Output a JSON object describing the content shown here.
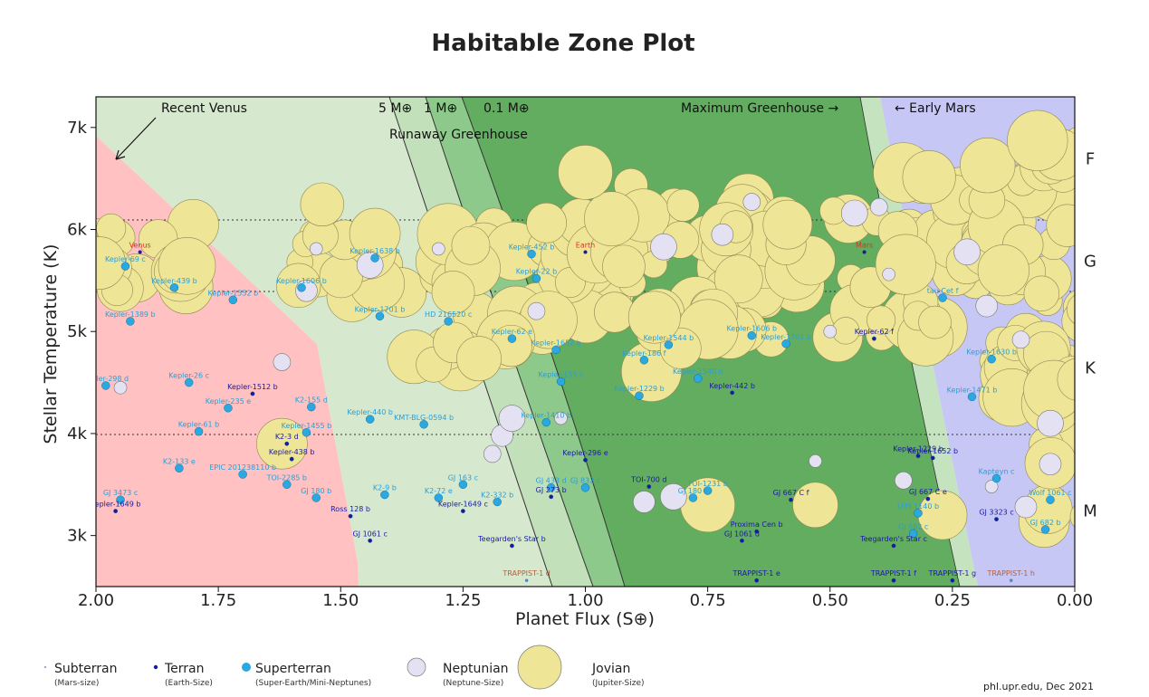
{
  "chart_data": {
    "type": "scatter",
    "title": "Habitable Zone Plot",
    "xlabel": "Planet Flux (S⊕)",
    "ylabel": "Stellar Temperature (K)",
    "xlim": [
      2.0,
      0.0
    ],
    "ylim": [
      2500,
      7300
    ],
    "xticks": [
      "2.00",
      "1.75",
      "1.50",
      "1.25",
      "1.00",
      "0.75",
      "0.50",
      "0.25",
      "0.00"
    ],
    "yticks": [
      "3k",
      "4k",
      "5k",
      "6k",
      "7k"
    ],
    "spectral_types": [
      {
        "label": "F",
        "temp": 6700
      },
      {
        "label": "G",
        "temp": 5700
      },
      {
        "label": "K",
        "temp": 4650
      },
      {
        "label": "M",
        "temp": 3250
      }
    ],
    "zone_annotations": {
      "recent_venus": "Recent Venus",
      "runaway": "Runaway Greenhouse",
      "mass_5": "5 M⊕",
      "mass_1": "1 M⊕",
      "mass_01": "0.1 M⊕",
      "max_greenhouse": "Maximum Greenhouse →",
      "early_mars": "← Early Mars"
    },
    "planet_types": [
      {
        "name": "Subterran",
        "desc": "(Mars-size)",
        "color": "#6a8fbf"
      },
      {
        "name": "Terran",
        "desc": "(Earth-Size)",
        "color": "#1a1aa0"
      },
      {
        "name": "Superterran",
        "desc": "(Super-Earth/Mini-Neptunes)",
        "color": "#29a9e0"
      },
      {
        "name": "Neptunian",
        "desc": "(Neptune-Size)",
        "color": "#e4e2f2"
      },
      {
        "name": "Jovian",
        "desc": "(Jupiter-Size)",
        "color": "#efe596"
      }
    ],
    "solar_system": [
      {
        "name": "Venus",
        "flux": 1.91,
        "temp": 5778
      },
      {
        "name": "Earth",
        "flux": 1.0,
        "temp": 5778
      },
      {
        "name": "Mars",
        "flux": 0.43,
        "temp": 5778
      }
    ],
    "labeled_planets": [
      {
        "name": "Kepler-69 c",
        "flux": 1.94,
        "temp": 5640,
        "type": "Superterran"
      },
      {
        "name": "Kepler-439 b",
        "flux": 1.84,
        "temp": 5430,
        "type": "Superterran"
      },
      {
        "name": "Kepler-1389 b",
        "flux": 1.93,
        "temp": 5100,
        "type": "Superterran"
      },
      {
        "name": "Kepler-298 d",
        "flux": 1.98,
        "temp": 4470,
        "type": "Superterran"
      },
      {
        "name": "Kepler-26 c",
        "flux": 1.81,
        "temp": 4500,
        "type": "Superterran"
      },
      {
        "name": "Kepler-235 e",
        "flux": 1.73,
        "temp": 4250,
        "type": "Superterran"
      },
      {
        "name": "Kepler-61 b",
        "flux": 1.79,
        "temp": 4020,
        "type": "Superterran"
      },
      {
        "name": "Kepler-1512 b",
        "flux": 1.68,
        "temp": 4390,
        "type": "Terran"
      },
      {
        "name": "Kepler-1552 b",
        "flux": 1.72,
        "temp": 5310,
        "type": "Superterran"
      },
      {
        "name": "Kepler-1606 b",
        "flux": 1.58,
        "temp": 5430,
        "type": "Superterran"
      },
      {
        "name": "Kepler-1638 b",
        "flux": 1.43,
        "temp": 5720,
        "type": "Superterran"
      },
      {
        "name": "Kepler-1701 b",
        "flux": 1.42,
        "temp": 5150,
        "type": "Superterran"
      },
      {
        "name": "HD 216520 c",
        "flux": 1.28,
        "temp": 5100,
        "type": "Superterran"
      },
      {
        "name": "Kepler-452 b",
        "flux": 1.11,
        "temp": 5760,
        "type": "Superterran"
      },
      {
        "name": "Kepler-22 b",
        "flux": 1.1,
        "temp": 5520,
        "type": "Superterran"
      },
      {
        "name": "Kepler-62 e",
        "flux": 1.15,
        "temp": 4930,
        "type": "Superterran"
      },
      {
        "name": "Kepler-1652 b",
        "flux": 1.06,
        "temp": 4820,
        "type": "Superterran"
      },
      {
        "name": "Kepler-155 c",
        "flux": 1.05,
        "temp": 4510,
        "type": "Superterran"
      },
      {
        "name": "Kepler-1410 b",
        "flux": 1.08,
        "temp": 4110,
        "type": "Superterran"
      },
      {
        "name": "K2-155 d",
        "flux": 1.56,
        "temp": 4260,
        "type": "Superterran"
      },
      {
        "name": "Kepler-1455 b",
        "flux": 1.57,
        "temp": 4010,
        "type": "Superterran"
      },
      {
        "name": "Kepler-440 b",
        "flux": 1.44,
        "temp": 4140,
        "type": "Superterran"
      },
      {
        "name": "KMT-BLG-0594 b",
        "flux": 1.33,
        "temp": 4090,
        "type": "Superterran"
      },
      {
        "name": "K2-3 d",
        "flux": 1.61,
        "temp": 3900,
        "type": "Terran"
      },
      {
        "name": "Kepler-438 b",
        "flux": 1.6,
        "temp": 3750,
        "type": "Terran"
      },
      {
        "name": "K2-133 e",
        "flux": 1.83,
        "temp": 3660,
        "type": "Superterran"
      },
      {
        "name": "EPIC 201238110 b",
        "flux": 1.7,
        "temp": 3600,
        "type": "Superterran"
      },
      {
        "name": "TOI-2285 b",
        "flux": 1.61,
        "temp": 3500,
        "type": "Superterran"
      },
      {
        "name": "GJ 180 b",
        "flux": 1.55,
        "temp": 3370,
        "type": "Superterran"
      },
      {
        "name": "K2-9 b",
        "flux": 1.41,
        "temp": 3400,
        "type": "Superterran"
      },
      {
        "name": "Ross 128 b",
        "flux": 1.48,
        "temp": 3190,
        "type": "Terran"
      },
      {
        "name": "GJ 1061 c",
        "flux": 1.44,
        "temp": 2950,
        "type": "Terran"
      },
      {
        "name": "Kepler-1649 b",
        "flux": 1.96,
        "temp": 3240,
        "type": "Terran"
      },
      {
        "name": "GJ 3473 c",
        "flux": 1.95,
        "temp": 3350,
        "type": "Superterran"
      },
      {
        "name": "K2-72 e",
        "flux": 1.3,
        "temp": 3370,
        "type": "Superterran"
      },
      {
        "name": "K2-332 b",
        "flux": 1.18,
        "temp": 3330,
        "type": "Superterran"
      },
      {
        "name": "Kepler-1649 c",
        "flux": 1.25,
        "temp": 3240,
        "type": "Terran"
      },
      {
        "name": "GJ 163 c",
        "flux": 1.25,
        "temp": 3500,
        "type": "Superterran"
      },
      {
        "name": "GJ 433 d",
        "flux": 1.07,
        "temp": 3470,
        "type": "Superterran"
      },
      {
        "name": "GJ 832 c",
        "flux": 1.0,
        "temp": 3470,
        "type": "Superterran"
      },
      {
        "name": "GJ 273 b",
        "flux": 1.07,
        "temp": 3380,
        "type": "Terran"
      },
      {
        "name": "Kepler-296 e",
        "flux": 1.0,
        "temp": 3740,
        "type": "Terran"
      },
      {
        "name": "Teegarden's Star b",
        "flux": 1.15,
        "temp": 2900,
        "type": "Terran"
      },
      {
        "name": "TRAPPIST-1 d",
        "flux": 1.12,
        "temp": 2560,
        "type": "Subterran"
      },
      {
        "name": "Kepler-1544 b",
        "flux": 0.83,
        "temp": 4870,
        "type": "Superterran"
      },
      {
        "name": "Kepler-186 f",
        "flux": 0.88,
        "temp": 4720,
        "type": "Superterran"
      },
      {
        "name": "Kepler-1540 b",
        "flux": 0.77,
        "temp": 4540,
        "type": "Superterran"
      },
      {
        "name": "Kepler-442 b",
        "flux": 0.7,
        "temp": 4400,
        "type": "Terran"
      },
      {
        "name": "Kepler-1229 b",
        "flux": 0.89,
        "temp": 4370,
        "type": "Superterran"
      },
      {
        "name": "TOI-700 d",
        "flux": 0.87,
        "temp": 3480,
        "type": "Terran"
      },
      {
        "name": "GJ 180 c",
        "flux": 0.78,
        "temp": 3370,
        "type": "Superterran"
      },
      {
        "name": "TOI-1231 b",
        "flux": 0.75,
        "temp": 3440,
        "type": "Superterran"
      },
      {
        "name": "Proxima Cen b",
        "flux": 0.65,
        "temp": 3040,
        "type": "Terran"
      },
      {
        "name": "GJ 1061 d",
        "flux": 0.68,
        "temp": 2950,
        "type": "Terran"
      },
      {
        "name": "TRAPPIST-1 e",
        "flux": 0.65,
        "temp": 2560,
        "type": "Terran"
      },
      {
        "name": "GJ 667 C f",
        "flux": 0.58,
        "temp": 3350,
        "type": "Terran"
      },
      {
        "name": "Kepler-62 f",
        "flux": 0.41,
        "temp": 4930,
        "type": "Terran"
      },
      {
        "name": "Kepler-1229 b",
        "flux": 0.32,
        "temp": 3780,
        "type": "Terran"
      },
      {
        "name": "Kepler-1652 b",
        "flux": 0.29,
        "temp": 3760,
        "type": "Terran"
      },
      {
        "name": "GJ 667 C e",
        "flux": 0.3,
        "temp": 3360,
        "type": "Terran"
      },
      {
        "name": "GJ 3323 c",
        "flux": 0.16,
        "temp": 3160,
        "type": "Terran"
      },
      {
        "name": "Teegarden's Star c",
        "flux": 0.37,
        "temp": 2900,
        "type": "Terran"
      },
      {
        "name": "TRAPPIST-1 f",
        "flux": 0.37,
        "temp": 2560,
        "type": "Terran"
      },
      {
        "name": "TRAPPIST-1 g",
        "flux": 0.25,
        "temp": 2560,
        "type": "Terran"
      },
      {
        "name": "TRAPPIST-1 h",
        "flux": 0.13,
        "temp": 2560,
        "type": "Subterran"
      },
      {
        "name": "Kepler-1630 b",
        "flux": 0.17,
        "temp": 4730,
        "type": "Superterran"
      },
      {
        "name": "Kepler-1471 b",
        "flux": 0.21,
        "temp": 4360,
        "type": "Superterran"
      },
      {
        "name": "Kapteyn c",
        "flux": 0.16,
        "temp": 3560,
        "type": "Superterran"
      },
      {
        "name": "GJ 682 b",
        "flux": 0.06,
        "temp": 3060,
        "type": "Superterran"
      },
      {
        "name": "Wolf 1061 c",
        "flux": 0.05,
        "temp": 3350,
        "type": "Superterran"
      },
      {
        "name": "tau Cet f",
        "flux": 0.27,
        "temp": 5330,
        "type": "Superterran"
      },
      {
        "name": "Kepler-1701 b",
        "flux": 0.59,
        "temp": 4880,
        "type": "Superterran"
      },
      {
        "name": "Kepler-1606 b",
        "flux": 0.66,
        "temp": 4960,
        "type": "Superterran"
      },
      {
        "name": "GJ 682 c",
        "flux": 0.33,
        "temp": 3020,
        "type": "Superterran"
      },
      {
        "name": "LHS 1140 b",
        "flux": 0.32,
        "temp": 3220,
        "type": "Superterran"
      }
    ],
    "legend_position": "bottom",
    "grid": false
  },
  "credit": "phl.upr.edu, Dec 2021"
}
